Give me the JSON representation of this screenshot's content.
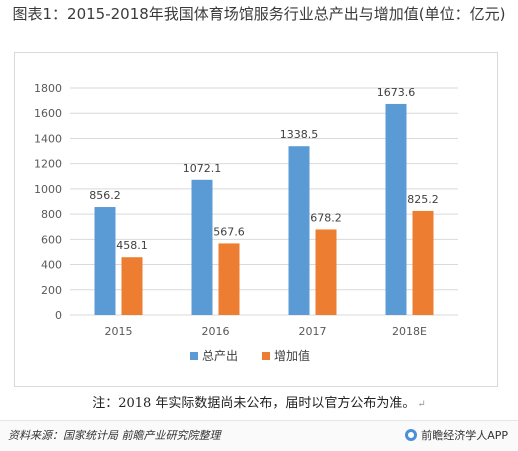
{
  "title": "图表1：2015-2018年我国体育场馆服务行业总产出与增加值(单位：亿元)",
  "chart_data": {
    "type": "bar",
    "categories": [
      "2015",
      "2016",
      "2017",
      "2018E"
    ],
    "series": [
      {
        "name": "总产出",
        "values": [
          856.2,
          1072.1,
          1338.5,
          1673.6
        ],
        "color": "#5b9bd5"
      },
      {
        "name": "增加值",
        "values": [
          458.1,
          567.6,
          678.2,
          825.2
        ],
        "color": "#ed7d31"
      }
    ],
    "ylim": [
      0,
      1800
    ],
    "yticks": [
      0,
      200,
      400,
      600,
      800,
      1000,
      1200,
      1400,
      1600,
      1800
    ],
    "grid": true,
    "legend_position": "bottom",
    "data_labels": true
  },
  "note": "注：2018 年实际数据尚未公布，届时以官方公布为准。",
  "note_return_mark": "↵",
  "source": "资料来源：国家统计局 前瞻产业研究院整理",
  "brand": {
    "icon": "brand-logo-icon",
    "text": "前瞻经济学人APP"
  }
}
